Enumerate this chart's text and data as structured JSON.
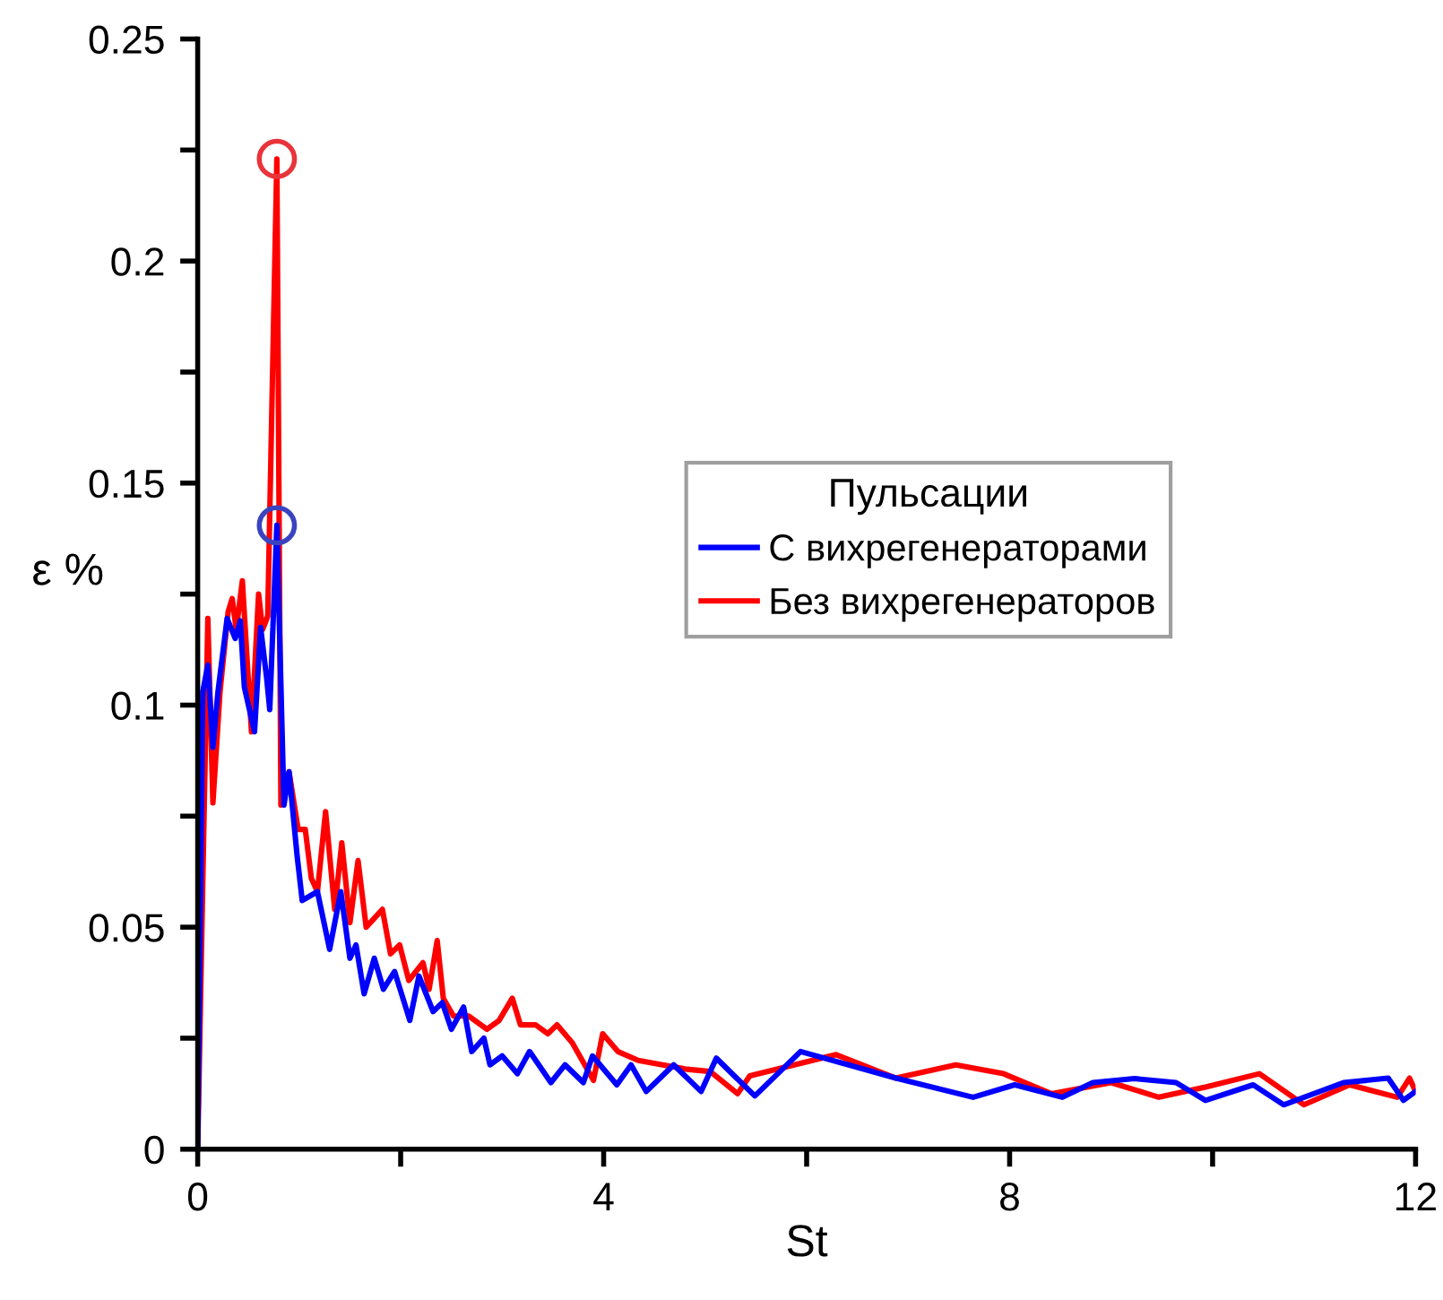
{
  "chart_data": {
    "type": "line",
    "xlabel": "St",
    "ylabel": "ε %",
    "legend_title": "Пульсации",
    "xlim": [
      0,
      12
    ],
    "ylim": [
      0,
      0.25
    ],
    "xticks": [
      0,
      {
        "value": 2,
        "label": null
      },
      4,
      {
        "value": 6,
        "label": null
      },
      8,
      {
        "value": 10,
        "label": null
      },
      12
    ],
    "yticks": [
      0,
      {
        "value": 0.025,
        "label": null
      },
      0.05,
      {
        "value": 0.075,
        "label": null
      },
      0.1,
      {
        "value": 0.125,
        "label": null
      },
      0.15,
      {
        "value": 0.175,
        "label": null
      },
      0.2,
      {
        "value": 0.225,
        "label": null
      },
      0.25
    ],
    "grid": false,
    "legend": "center right",
    "line_style": "solid",
    "marker": "none",
    "series": [
      {
        "name": "С вихрегенераторами",
        "color": "#0000ff",
        "x": [
          0,
          0.05,
          0.1,
          0.15,
          0.2,
          0.29,
          0.37,
          0.42,
          0.46,
          0.56,
          0.62,
          0.68,
          0.71,
          0.78,
          0.85,
          0.9,
          0.98,
          1.03,
          1.18,
          1.3,
          1.41,
          1.5,
          1.56,
          1.64,
          1.74,
          1.83,
          1.94,
          2.09,
          2.18,
          2.32,
          2.41,
          2.5,
          2.62,
          2.7,
          2.82,
          2.88,
          3.0,
          3.15,
          3.27,
          3.48,
          3.62,
          3.8,
          3.89,
          4.13,
          4.27,
          4.42,
          4.69,
          4.96,
          5.11,
          5.31,
          5.49,
          5.94,
          6.88,
          7.64,
          8.05,
          8.52,
          8.82,
          9.23,
          9.64,
          9.93,
          10.4,
          10.7,
          11.29,
          11.73,
          11.88,
          12.0
        ],
        "values": [
          0,
          0.103,
          0.109,
          0.0905,
          0.103,
          0.1195,
          0.115,
          0.119,
          0.104,
          0.094,
          0.1175,
          0.106,
          0.099,
          0.1405,
          0.0775,
          0.085,
          0.066,
          0.056,
          0.058,
          0.045,
          0.058,
          0.043,
          0.046,
          0.035,
          0.043,
          0.036,
          0.04,
          0.029,
          0.039,
          0.031,
          0.033,
          0.027,
          0.032,
          0.022,
          0.025,
          0.019,
          0.021,
          0.017,
          0.022,
          0.015,
          0.019,
          0.015,
          0.021,
          0.0145,
          0.019,
          0.013,
          0.019,
          0.013,
          0.0205,
          0.016,
          0.012,
          0.022,
          0.016,
          0.0117,
          0.0145,
          0.0117,
          0.015,
          0.0159,
          0.015,
          0.011,
          0.0145,
          0.01,
          0.015,
          0.016,
          0.011,
          0.013
        ]
      },
      {
        "name": "Без вихрегенераторов",
        "color": "#ff0000",
        "x": [
          0,
          0.1,
          0.15,
          0.22,
          0.3,
          0.34,
          0.38,
          0.44,
          0.53,
          0.6,
          0.64,
          0.69,
          0.78,
          0.82,
          0.9,
          0.99,
          1.06,
          1.12,
          1.18,
          1.26,
          1.35,
          1.42,
          1.5,
          1.58,
          1.66,
          1.82,
          1.9,
          1.99,
          2.08,
          2.22,
          2.28,
          2.36,
          2.42,
          2.52,
          2.67,
          2.85,
          2.97,
          3.1,
          3.18,
          3.33,
          3.45,
          3.54,
          3.69,
          3.9,
          3.99,
          4.14,
          4.34,
          4.58,
          4.82,
          5.05,
          5.32,
          5.44,
          6.29,
          6.88,
          7.47,
          7.94,
          8.41,
          9.0,
          9.47,
          9.93,
          10.46,
          10.9,
          11.35,
          11.82,
          11.94,
          12.0
        ],
        "values": [
          0,
          0.1195,
          0.078,
          0.103,
          0.121,
          0.124,
          0.117,
          0.128,
          0.094,
          0.125,
          0.117,
          0.12,
          0.223,
          0.0775,
          0.085,
          0.072,
          0.072,
          0.061,
          0.058,
          0.076,
          0.054,
          0.069,
          0.051,
          0.065,
          0.05,
          0.054,
          0.044,
          0.046,
          0.038,
          0.042,
          0.036,
          0.047,
          0.034,
          0.03,
          0.03,
          0.027,
          0.029,
          0.034,
          0.028,
          0.028,
          0.026,
          0.028,
          0.024,
          0.0155,
          0.026,
          0.022,
          0.02,
          0.019,
          0.018,
          0.0175,
          0.0125,
          0.0165,
          0.0213,
          0.016,
          0.019,
          0.017,
          0.0125,
          0.015,
          0.0117,
          0.014,
          0.017,
          0.01,
          0.0145,
          0.0117,
          0.016,
          0.013
        ]
      },
      {
        "type": "scatter",
        "marker": "circle",
        "color": "#e8343a",
        "x": [
          0.78
        ],
        "values": [
          0.223
        ]
      },
      {
        "type": "scatter",
        "marker": "circle",
        "color": "#3a44c0",
        "x": [
          0.78
        ],
        "values": [
          0.1405
        ]
      }
    ]
  }
}
